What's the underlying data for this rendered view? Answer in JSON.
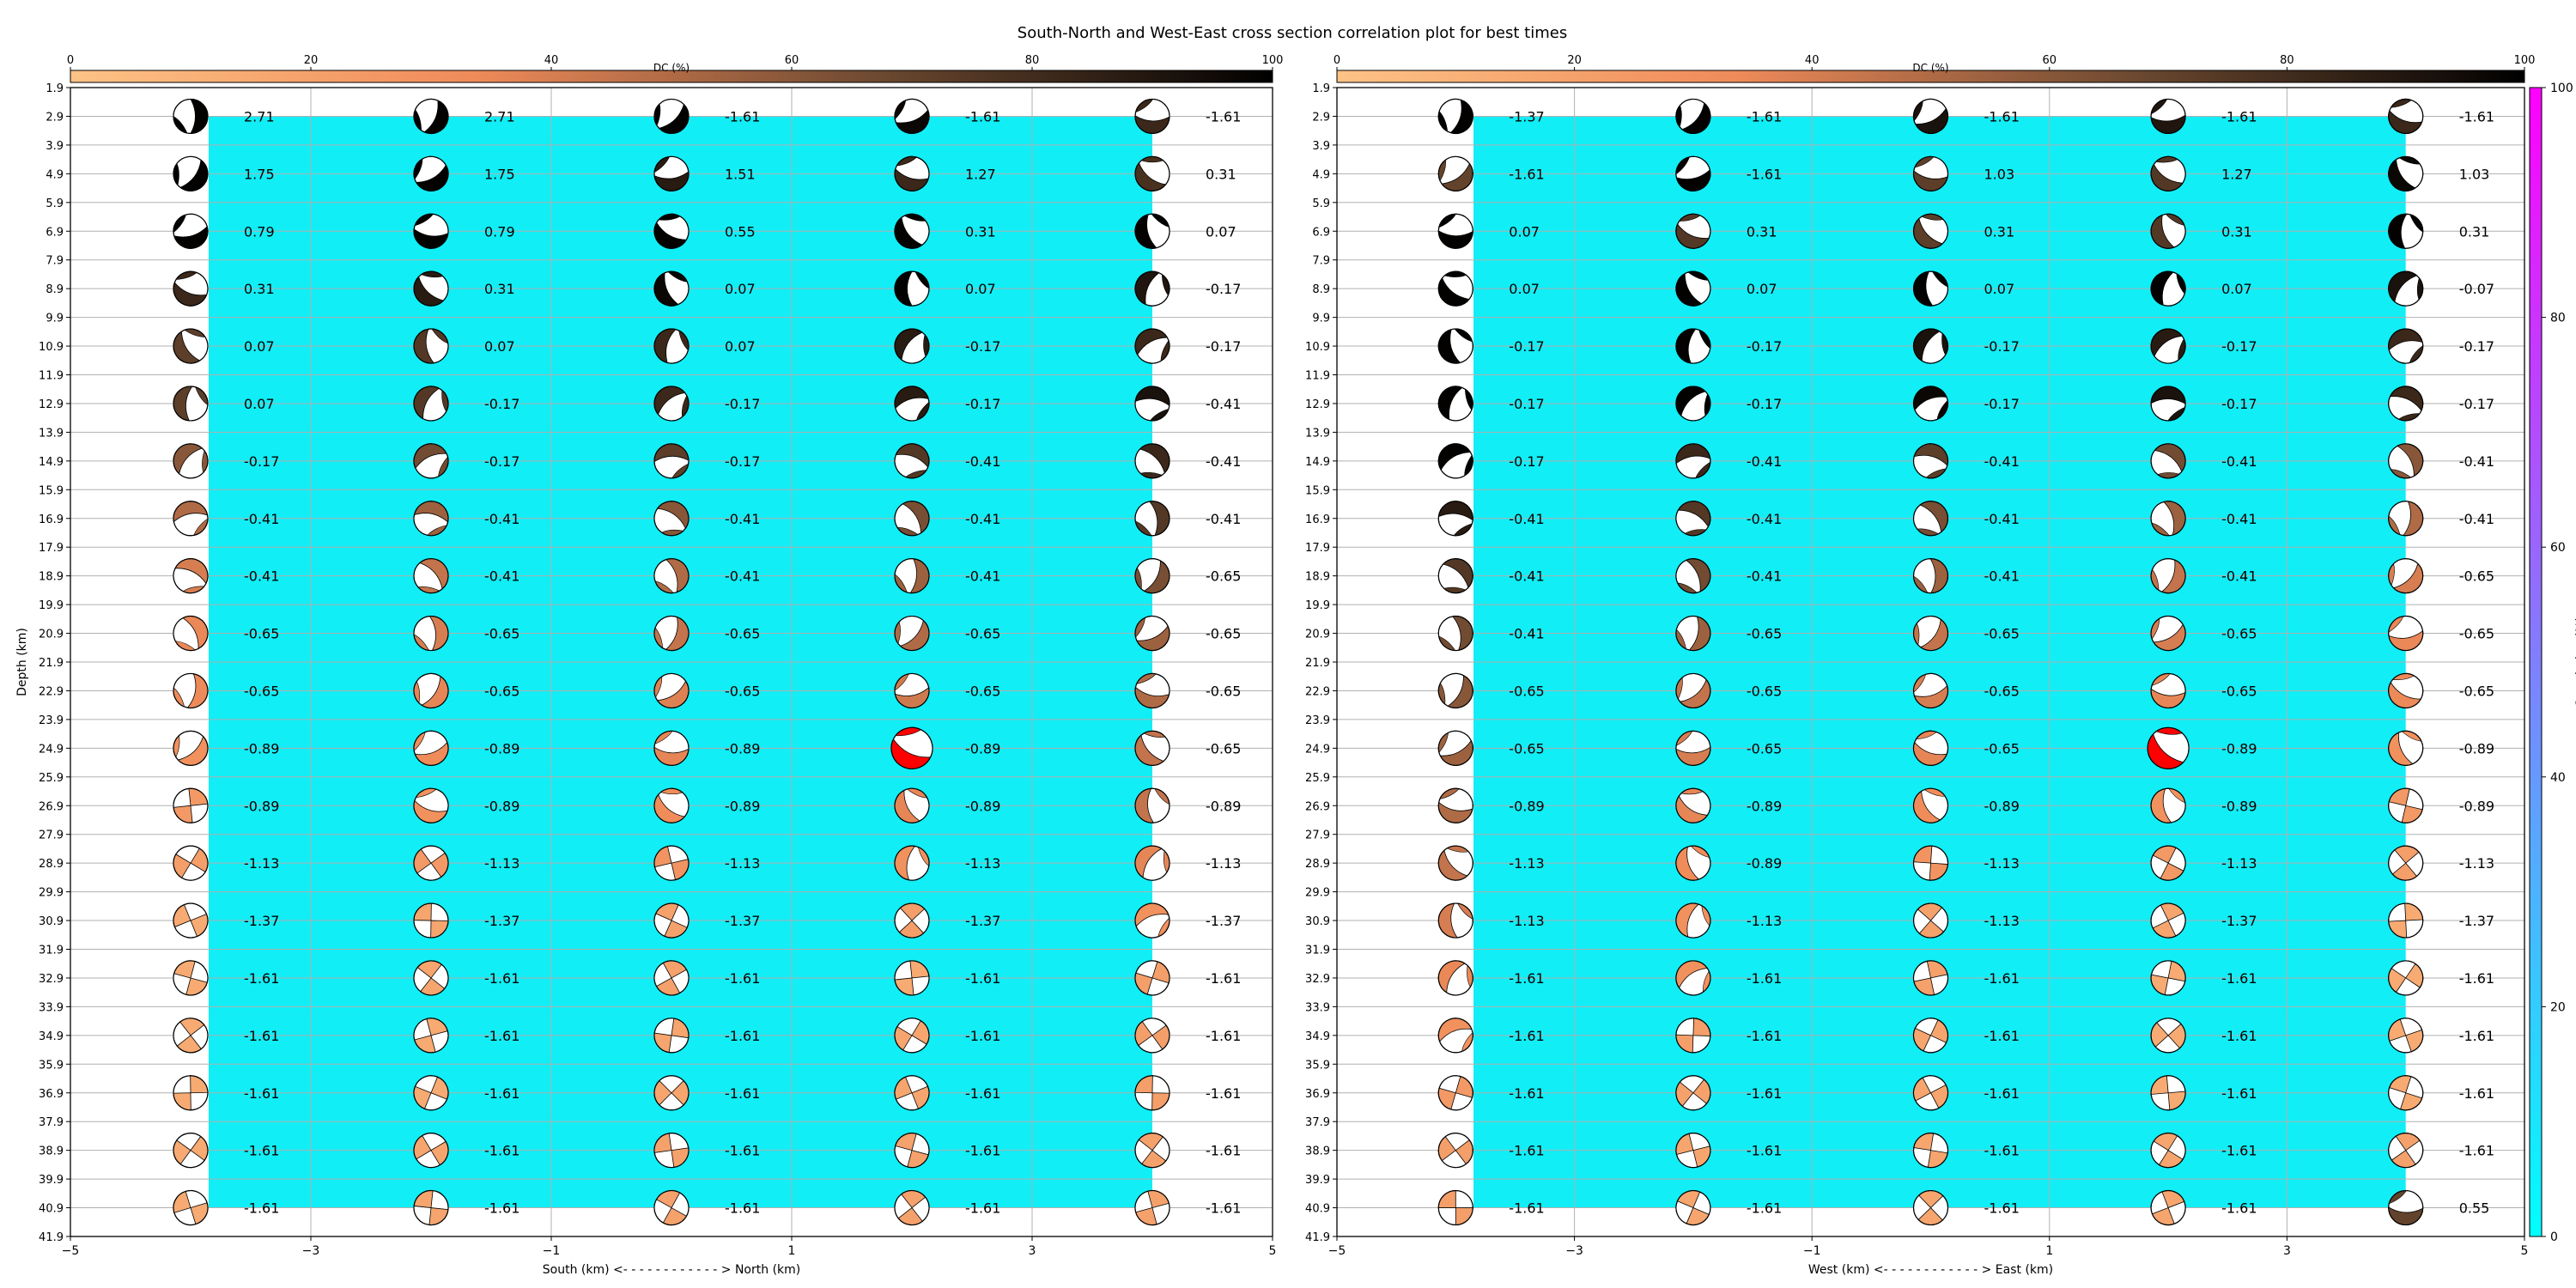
{
  "title": "South-North and West-East cross section correlation plot for best times",
  "dc_colorbar": {
    "label": "DC (%)",
    "ticks": [
      0,
      20,
      40,
      60,
      80,
      100
    ],
    "colors": [
      "#fdc386",
      "#f08b5a",
      "#6e4a31",
      "#000000"
    ]
  },
  "corr_colorbar": {
    "label": "Correlation (%)",
    "ticks": [
      0,
      20,
      40,
      60,
      80,
      100
    ],
    "colors": [
      "#00ffff",
      "#ff00ff"
    ]
  },
  "depth_label": "Depth (km)",
  "colors": {
    "background": "#11eef6",
    "best": "#ff0000",
    "grid": "#b0b0b0"
  },
  "chart_data": [
    {
      "type": "scatter",
      "title": "",
      "xlabel": "South (km) <- - - - - - - - - - - - > North (km)",
      "ylabel": "Depth (km)",
      "xlim": [
        -5,
        5
      ],
      "ylim": [
        41.9,
        1.9
      ],
      "x_ticks": [
        -5,
        -3,
        -1,
        1,
        3,
        5
      ],
      "y_ticks": [
        "1.9",
        "2.9",
        "3.9",
        "4.9",
        "5.9",
        "6.9",
        "7.9",
        "8.9",
        "9.9",
        "10.9",
        "11.9",
        "12.9",
        "13.9",
        "14.9",
        "15.9",
        "16.9",
        "17.9",
        "18.9",
        "19.9",
        "20.9",
        "21.9",
        "22.9",
        "23.9",
        "24.9",
        "25.9",
        "26.9",
        "27.9",
        "28.9",
        "29.9",
        "30.9",
        "31.9",
        "32.9",
        "33.9",
        "34.9",
        "35.9",
        "36.9",
        "37.9",
        "38.9",
        "39.9",
        "40.9",
        "41.9"
      ],
      "x": [
        -4,
        -2,
        0,
        2,
        4
      ],
      "depths": [
        2.9,
        4.9,
        6.9,
        8.9,
        10.9,
        12.9,
        14.9,
        16.9,
        18.9,
        20.9,
        22.9,
        24.9,
        26.9,
        28.9,
        30.9,
        32.9,
        34.9,
        36.9,
        38.9,
        40.9
      ],
      "correlation_band_x": [
        -3.85,
        4.0
      ],
      "best": {
        "x": 2,
        "depth": 24.9
      },
      "labels": [
        [
          "2.71",
          "2.71",
          "-1.61",
          "-1.61",
          "-1.61"
        ],
        [
          "1.75",
          "1.75",
          "1.51",
          "1.27",
          "0.31"
        ],
        [
          "0.79",
          "0.79",
          "0.55",
          "0.31",
          "0.07"
        ],
        [
          "0.31",
          "0.31",
          "0.07",
          "0.07",
          "-0.17"
        ],
        [
          "0.07",
          "0.07",
          "0.07",
          "-0.17",
          "-0.17"
        ],
        [
          "0.07",
          "-0.17",
          "-0.17",
          "-0.17",
          "-0.41"
        ],
        [
          "-0.17",
          "-0.17",
          "-0.17",
          "-0.41",
          "-0.41"
        ],
        [
          "-0.41",
          "-0.41",
          "-0.41",
          "-0.41",
          "-0.41"
        ],
        [
          "-0.41",
          "-0.41",
          "-0.41",
          "-0.41",
          "-0.65"
        ],
        [
          "-0.65",
          "-0.65",
          "-0.65",
          "-0.65",
          "-0.65"
        ],
        [
          "-0.65",
          "-0.65",
          "-0.65",
          "-0.65",
          "-0.65"
        ],
        [
          "-0.89",
          "-0.89",
          "-0.89",
          "-0.89",
          "-0.65"
        ],
        [
          "-0.89",
          "-0.89",
          "-0.89",
          "-0.89",
          "-0.89"
        ],
        [
          "-1.13",
          "-1.13",
          "-1.13",
          "-1.13",
          "-1.13"
        ],
        [
          "-1.37",
          "-1.37",
          "-1.37",
          "-1.37",
          "-1.37"
        ],
        [
          "-1.61",
          "-1.61",
          "-1.61",
          "-1.61",
          "-1.61"
        ],
        [
          "-1.61",
          "-1.61",
          "-1.61",
          "-1.61",
          "-1.61"
        ],
        [
          "-1.61",
          "-1.61",
          "-1.61",
          "-1.61",
          "-1.61"
        ],
        [
          "-1.61",
          "-1.61",
          "-1.61",
          "-1.61",
          "-1.61"
        ],
        [
          "-1.61",
          "-1.61",
          "-1.61",
          "-1.61",
          "-1.61"
        ]
      ],
      "dc_percent": [
        [
          99,
          99,
          99,
          97,
          82
        ],
        [
          99,
          99,
          88,
          82,
          78
        ],
        [
          99,
          99,
          99,
          99,
          99
        ],
        [
          82,
          88,
          97,
          99,
          90
        ],
        [
          72,
          75,
          82,
          88,
          82
        ],
        [
          72,
          75,
          82,
          88,
          92
        ],
        [
          60,
          66,
          72,
          75,
          82
        ],
        [
          50,
          55,
          60,
          64,
          75
        ],
        [
          40,
          45,
          50,
          55,
          64
        ],
        [
          35,
          40,
          45,
          50,
          55
        ],
        [
          34,
          36,
          38,
          42,
          50
        ],
        [
          30,
          33,
          36,
          40,
          45
        ],
        [
          25,
          30,
          33,
          36,
          45
        ],
        [
          22,
          25,
          28,
          30,
          36
        ],
        [
          15,
          18,
          20,
          22,
          30
        ],
        [
          15,
          18,
          20,
          15,
          22
        ],
        [
          15,
          15,
          18,
          18,
          22
        ],
        [
          15,
          15,
          18,
          18,
          22
        ],
        [
          15,
          18,
          20,
          20,
          20
        ],
        [
          15,
          18,
          20,
          20,
          20
        ]
      ]
    },
    {
      "type": "scatter",
      "title": "",
      "xlabel": "West (km) <- - - - - - - - - - - - > East (km)",
      "ylabel": "",
      "xlim": [
        -5,
        5
      ],
      "ylim": [
        41.9,
        1.9
      ],
      "x_ticks": [
        -5,
        -3,
        -1,
        1,
        3,
        5
      ],
      "y_ticks": [
        "1.9",
        "2.9",
        "3.9",
        "4.9",
        "5.9",
        "6.9",
        "7.9",
        "8.9",
        "9.9",
        "10.9",
        "11.9",
        "12.9",
        "13.9",
        "14.9",
        "15.9",
        "16.9",
        "17.9",
        "18.9",
        "19.9",
        "20.9",
        "21.9",
        "22.9",
        "23.9",
        "24.9",
        "25.9",
        "26.9",
        "27.9",
        "28.9",
        "29.9",
        "30.9",
        "31.9",
        "32.9",
        "33.9",
        "34.9",
        "35.9",
        "36.9",
        "37.9",
        "38.9",
        "39.9",
        "40.9",
        "41.9"
      ],
      "x": [
        -4,
        -2,
        0,
        2,
        4
      ],
      "depths": [
        2.9,
        4.9,
        6.9,
        8.9,
        10.9,
        12.9,
        14.9,
        16.9,
        18.9,
        20.9,
        22.9,
        24.9,
        26.9,
        28.9,
        30.9,
        32.9,
        34.9,
        36.9,
        38.9,
        40.9
      ],
      "correlation_band_x": [
        -3.85,
        4.0
      ],
      "best": {
        "x": 2,
        "depth": 24.9
      },
      "labels": [
        [
          "-1.37",
          "-1.61",
          "-1.61",
          "-1.61",
          "-1.61"
        ],
        [
          "-1.61",
          "-1.61",
          "1.03",
          "1.27",
          "1.03"
        ],
        [
          "0.07",
          "0.31",
          "0.31",
          "0.31",
          "0.31"
        ],
        [
          "0.07",
          "0.07",
          "0.07",
          "0.07",
          "-0.07"
        ],
        [
          "-0.17",
          "-0.17",
          "-0.17",
          "-0.17",
          "-0.17"
        ],
        [
          "-0.17",
          "-0.17",
          "-0.17",
          "-0.17",
          "-0.17"
        ],
        [
          "-0.17",
          "-0.41",
          "-0.41",
          "-0.41",
          "-0.41"
        ],
        [
          "-0.41",
          "-0.41",
          "-0.41",
          "-0.41",
          "-0.41"
        ],
        [
          "-0.41",
          "-0.41",
          "-0.41",
          "-0.41",
          "-0.65"
        ],
        [
          "-0.41",
          "-0.65",
          "-0.65",
          "-0.65",
          "-0.65"
        ],
        [
          "-0.65",
          "-0.65",
          "-0.65",
          "-0.65",
          "-0.65"
        ],
        [
          "-0.65",
          "-0.65",
          "-0.65",
          "-0.89",
          "-0.89"
        ],
        [
          "-0.89",
          "-0.89",
          "-0.89",
          "-0.89",
          "-0.89"
        ],
        [
          "-1.13",
          "-0.89",
          "-1.13",
          "-1.13",
          "-1.13"
        ],
        [
          "-1.13",
          "-1.13",
          "-1.13",
          "-1.37",
          "-1.37"
        ],
        [
          "-1.61",
          "-1.61",
          "-1.61",
          "-1.61",
          "-1.61"
        ],
        [
          "-1.61",
          "-1.61",
          "-1.61",
          "-1.61",
          "-1.61"
        ],
        [
          "-1.61",
          "-1.61",
          "-1.61",
          "-1.61",
          "-1.61"
        ],
        [
          "-1.61",
          "-1.61",
          "-1.61",
          "-1.61",
          "-1.61"
        ],
        [
          "-1.61",
          "-1.61",
          "-1.61",
          "-1.61",
          "0.55"
        ]
      ],
      "dc_percent": [
        [
          99,
          99,
          92,
          90,
          82
        ],
        [
          70,
          99,
          72,
          75,
          97
        ],
        [
          99,
          75,
          72,
          75,
          99
        ],
        [
          99,
          99,
          99,
          99,
          92
        ],
        [
          99,
          99,
          92,
          88,
          82
        ],
        [
          99,
          99,
          97,
          92,
          82
        ],
        [
          99,
          82,
          72,
          66,
          60
        ],
        [
          88,
          75,
          64,
          55,
          50
        ],
        [
          75,
          66,
          55,
          45,
          40
        ],
        [
          66,
          55,
          45,
          40,
          35
        ],
        [
          60,
          45,
          40,
          36,
          34
        ],
        [
          55,
          40,
          36,
          34,
          30
        ],
        [
          50,
          36,
          33,
          30,
          25
        ],
        [
          45,
          33,
          28,
          25,
          22
        ],
        [
          40,
          30,
          20,
          18,
          15
        ],
        [
          35,
          30,
          20,
          15,
          15
        ],
        [
          30,
          22,
          18,
          15,
          15
        ],
        [
          25,
          20,
          18,
          15,
          15
        ],
        [
          22,
          18,
          18,
          18,
          20
        ],
        [
          22,
          18,
          18,
          18,
          70
        ]
      ]
    }
  ]
}
